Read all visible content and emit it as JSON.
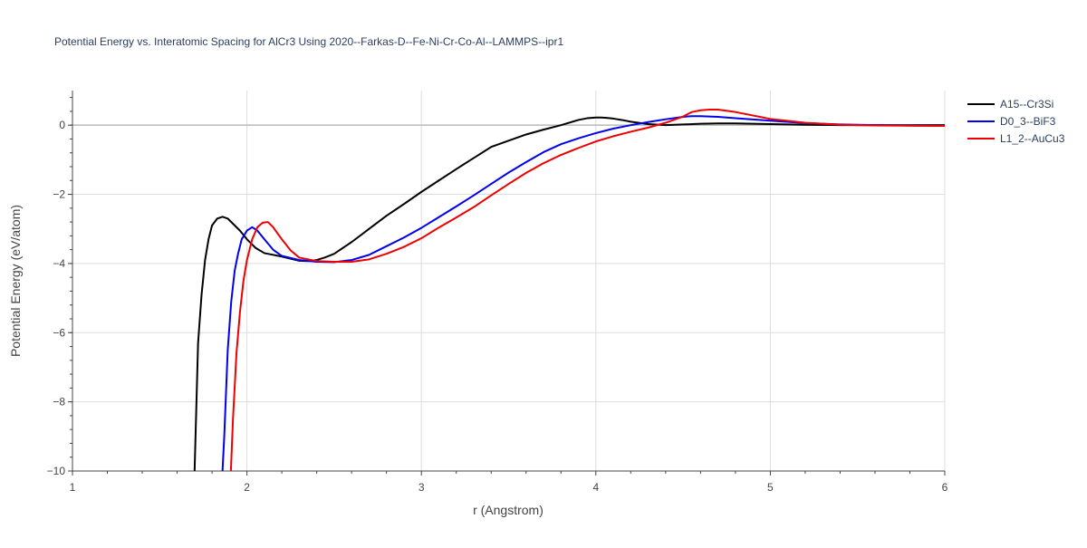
{
  "chart_data": {
    "type": "line",
    "title": "Potential Energy vs. Interatomic Spacing for AlCr3 Using 2020--Farkas-D--Fe-Ni-Cr-Co-Al--LAMMPS--ipr1",
    "xlabel": "r (Angstrom)",
    "ylabel": "Potential Energy (eV/atom)",
    "xlim": [
      1,
      6
    ],
    "ylim": [
      -10,
      1
    ],
    "xticks": [
      1,
      2,
      3,
      4,
      5,
      6
    ],
    "xtick_labels": [
      "1",
      "2",
      "3",
      "4",
      "5",
      "6"
    ],
    "yticks": [
      -10,
      -8,
      -6,
      -4,
      -2,
      0
    ],
    "ytick_labels": [
      "−10",
      "−8",
      "−6",
      "−4",
      "−2",
      "0"
    ],
    "grid": true,
    "legend_position": "top-right",
    "series": [
      {
        "name": "A15--Cr3Si",
        "color": "#000000",
        "x": [
          1.68,
          1.7,
          1.72,
          1.74,
          1.76,
          1.78,
          1.8,
          1.83,
          1.86,
          1.89,
          1.92,
          1.96,
          2.0,
          2.05,
          2.1,
          2.2,
          2.3,
          2.35,
          2.4,
          2.45,
          2.5,
          2.6,
          2.7,
          2.8,
          2.9,
          3.0,
          3.1,
          3.2,
          3.3,
          3.4,
          3.5,
          3.6,
          3.7,
          3.8,
          3.9,
          3.95,
          4.0,
          4.03,
          4.06,
          4.1,
          4.15,
          4.2,
          4.3,
          4.4,
          4.5,
          4.6,
          4.7,
          4.8,
          5.0,
          5.2,
          5.4,
          5.6,
          6.0
        ],
        "y": [
          -11.5,
          -10.0,
          -6.3,
          -4.9,
          -3.9,
          -3.3,
          -2.9,
          -2.7,
          -2.65,
          -2.7,
          -2.85,
          -3.05,
          -3.3,
          -3.55,
          -3.7,
          -3.8,
          -3.92,
          -3.93,
          -3.9,
          -3.82,
          -3.72,
          -3.38,
          -3.0,
          -2.62,
          -2.28,
          -1.93,
          -1.6,
          -1.27,
          -0.95,
          -0.63,
          -0.45,
          -0.27,
          -0.13,
          0.0,
          0.15,
          0.2,
          0.22,
          0.22,
          0.21,
          0.19,
          0.15,
          0.1,
          0.03,
          0.0,
          0.02,
          0.04,
          0.05,
          0.05,
          0.03,
          0.01,
          0.0,
          0.0,
          0.0
        ]
      },
      {
        "name": "D0_3--BiF3",
        "color": "#0000ee",
        "x": [
          1.85,
          1.87,
          1.89,
          1.91,
          1.93,
          1.95,
          1.97,
          2.0,
          2.03,
          2.06,
          2.1,
          2.15,
          2.2,
          2.3,
          2.4,
          2.5,
          2.6,
          2.7,
          2.8,
          2.9,
          3.0,
          3.1,
          3.2,
          3.3,
          3.4,
          3.5,
          3.6,
          3.7,
          3.8,
          3.9,
          4.0,
          4.1,
          4.2,
          4.3,
          4.4,
          4.5,
          4.55,
          4.6,
          4.7,
          4.8,
          5.0,
          5.2,
          5.4,
          5.6,
          6.0
        ],
        "y": [
          -11.0,
          -9.0,
          -6.5,
          -5.1,
          -4.2,
          -3.7,
          -3.3,
          -3.05,
          -2.95,
          -3.05,
          -3.3,
          -3.6,
          -3.78,
          -3.9,
          -3.95,
          -3.96,
          -3.9,
          -3.75,
          -3.5,
          -3.25,
          -2.97,
          -2.66,
          -2.35,
          -2.03,
          -1.7,
          -1.37,
          -1.07,
          -0.78,
          -0.55,
          -0.38,
          -0.23,
          -0.1,
          0.0,
          0.09,
          0.17,
          0.24,
          0.26,
          0.26,
          0.24,
          0.2,
          0.13,
          0.06,
          0.02,
          0.0,
          -0.02
        ]
      },
      {
        "name": "L1_2--AuCu3",
        "color": "#ee0000",
        "x": [
          1.9,
          1.92,
          1.94,
          1.96,
          1.98,
          2.0,
          2.03,
          2.06,
          2.09,
          2.12,
          2.15,
          2.2,
          2.25,
          2.3,
          2.4,
          2.5,
          2.6,
          2.7,
          2.8,
          2.9,
          3.0,
          3.1,
          3.2,
          3.3,
          3.4,
          3.5,
          3.6,
          3.7,
          3.8,
          3.9,
          4.0,
          4.1,
          4.2,
          4.3,
          4.4,
          4.5,
          4.55,
          4.6,
          4.65,
          4.7,
          4.8,
          5.0,
          5.2,
          5.4,
          5.6,
          6.0
        ],
        "y": [
          -11.0,
          -8.5,
          -6.6,
          -5.4,
          -4.5,
          -3.9,
          -3.3,
          -2.95,
          -2.82,
          -2.8,
          -2.95,
          -3.3,
          -3.62,
          -3.83,
          -3.93,
          -3.95,
          -3.95,
          -3.88,
          -3.72,
          -3.52,
          -3.27,
          -2.96,
          -2.67,
          -2.37,
          -2.03,
          -1.7,
          -1.38,
          -1.1,
          -0.86,
          -0.66,
          -0.47,
          -0.32,
          -0.19,
          -0.07,
          0.07,
          0.25,
          0.38,
          0.43,
          0.45,
          0.45,
          0.38,
          0.18,
          0.07,
          0.01,
          -0.01,
          -0.02
        ]
      }
    ]
  }
}
